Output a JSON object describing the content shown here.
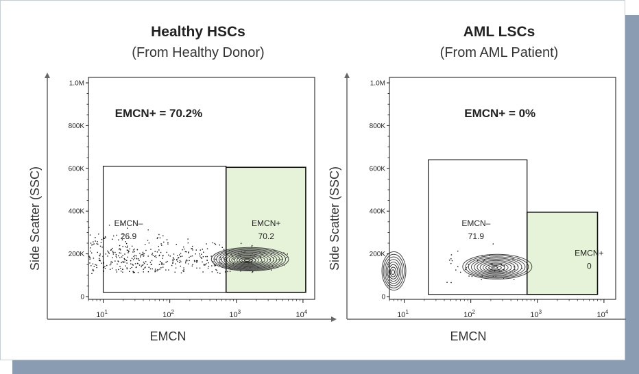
{
  "chart_data": [
    {
      "type": "scatter",
      "title": "Healthy HSCs",
      "subtitle": "(From Healthy Donor)",
      "xlabel": "EMCN",
      "ylabel": "Side Scatter (SSC)",
      "x_scale": "log",
      "xlim": [
        6,
        15000
      ],
      "ylim": [
        0,
        1000000
      ],
      "x_ticks": [
        {
          "v": 10,
          "label": "10",
          "exp": "1"
        },
        {
          "v": 100,
          "label": "10",
          "exp": "2"
        },
        {
          "v": 1000,
          "label": "10",
          "exp": "3"
        },
        {
          "v": 10000,
          "label": "10",
          "exp": "4"
        }
      ],
      "y_ticks": [
        {
          "v": 0,
          "label": "0"
        },
        {
          "v": 200000,
          "label": "200K"
        },
        {
          "v": 400000,
          "label": "400K"
        },
        {
          "v": 600000,
          "label": "600K"
        },
        {
          "v": 800000,
          "label": "800K"
        },
        {
          "v": 1000000,
          "label": "1.0M"
        }
      ],
      "annotation": "EMCN+ = 70.2%",
      "annotation_pos": {
        "x": 15,
        "y": 840000
      },
      "gates": [
        {
          "name": "EMCN–",
          "value": "26.9",
          "x": [
            10,
            700
          ],
          "y": [
            20000,
            610000
          ],
          "fill": "none",
          "label_at": [
            24,
            330000
          ]
        },
        {
          "name": "EMCN+",
          "value": "70.2",
          "x": [
            700,
            11000
          ],
          "y": [
            20000,
            605000
          ],
          "fill": "#e6f3d9",
          "label_at": [
            2800,
            330000
          ]
        }
      ],
      "contour": {
        "cx": 1600,
        "cy": 175000,
        "spread_dec": 0.58,
        "spread_y": 55000
      },
      "scatter_range": {
        "x": [
          6,
          8000
        ],
        "y": [
          110000,
          340000
        ]
      }
    },
    {
      "type": "scatter",
      "title": "AML LSCs",
      "subtitle": "(From AML Patient)",
      "xlabel": "EMCN",
      "ylabel": "Side Scatter (SSC)",
      "x_scale": "log",
      "xlim": [
        6,
        15000
      ],
      "ylim": [
        0,
        1000000
      ],
      "x_ticks": [
        {
          "v": 10,
          "label": "10",
          "exp": "1"
        },
        {
          "v": 100,
          "label": "10",
          "exp": "2"
        },
        {
          "v": 1000,
          "label": "10",
          "exp": "3"
        },
        {
          "v": 10000,
          "label": "10",
          "exp": "4"
        }
      ],
      "y_ticks": [
        {
          "v": 0,
          "label": "0"
        },
        {
          "v": 200000,
          "label": "200K"
        },
        {
          "v": 400000,
          "label": "400K"
        },
        {
          "v": 600000,
          "label": "600K"
        },
        {
          "v": 800000,
          "label": "800K"
        },
        {
          "v": 1000000,
          "label": "1.0M"
        }
      ],
      "annotation": "EMCN+ = 0%",
      "annotation_pos": {
        "x": 80,
        "y": 840000
      },
      "gates": [
        {
          "name": "EMCN–",
          "value": "71.9",
          "x": [
            23,
            700
          ],
          "y": [
            10000,
            640000
          ],
          "fill": "none",
          "label_at": [
            120,
            330000
          ]
        },
        {
          "name": "EMCN+",
          "value": "0",
          "x": [
            700,
            8000
          ],
          "y": [
            10000,
            395000
          ],
          "fill": "#e6f3d9",
          "label_at": [
            6000,
            190000
          ]
        }
      ],
      "contour": {
        "cx": 250,
        "cy": 140000,
        "spread_dec": 0.52,
        "spread_y": 58000
      },
      "contour_edge": {
        "cx": 7,
        "cy": 120000,
        "spread_dec": 0.18,
        "spread_y": 90000
      },
      "scatter_range": {
        "x": [
          40,
          600
        ],
        "y": [
          60000,
          260000
        ]
      }
    }
  ]
}
